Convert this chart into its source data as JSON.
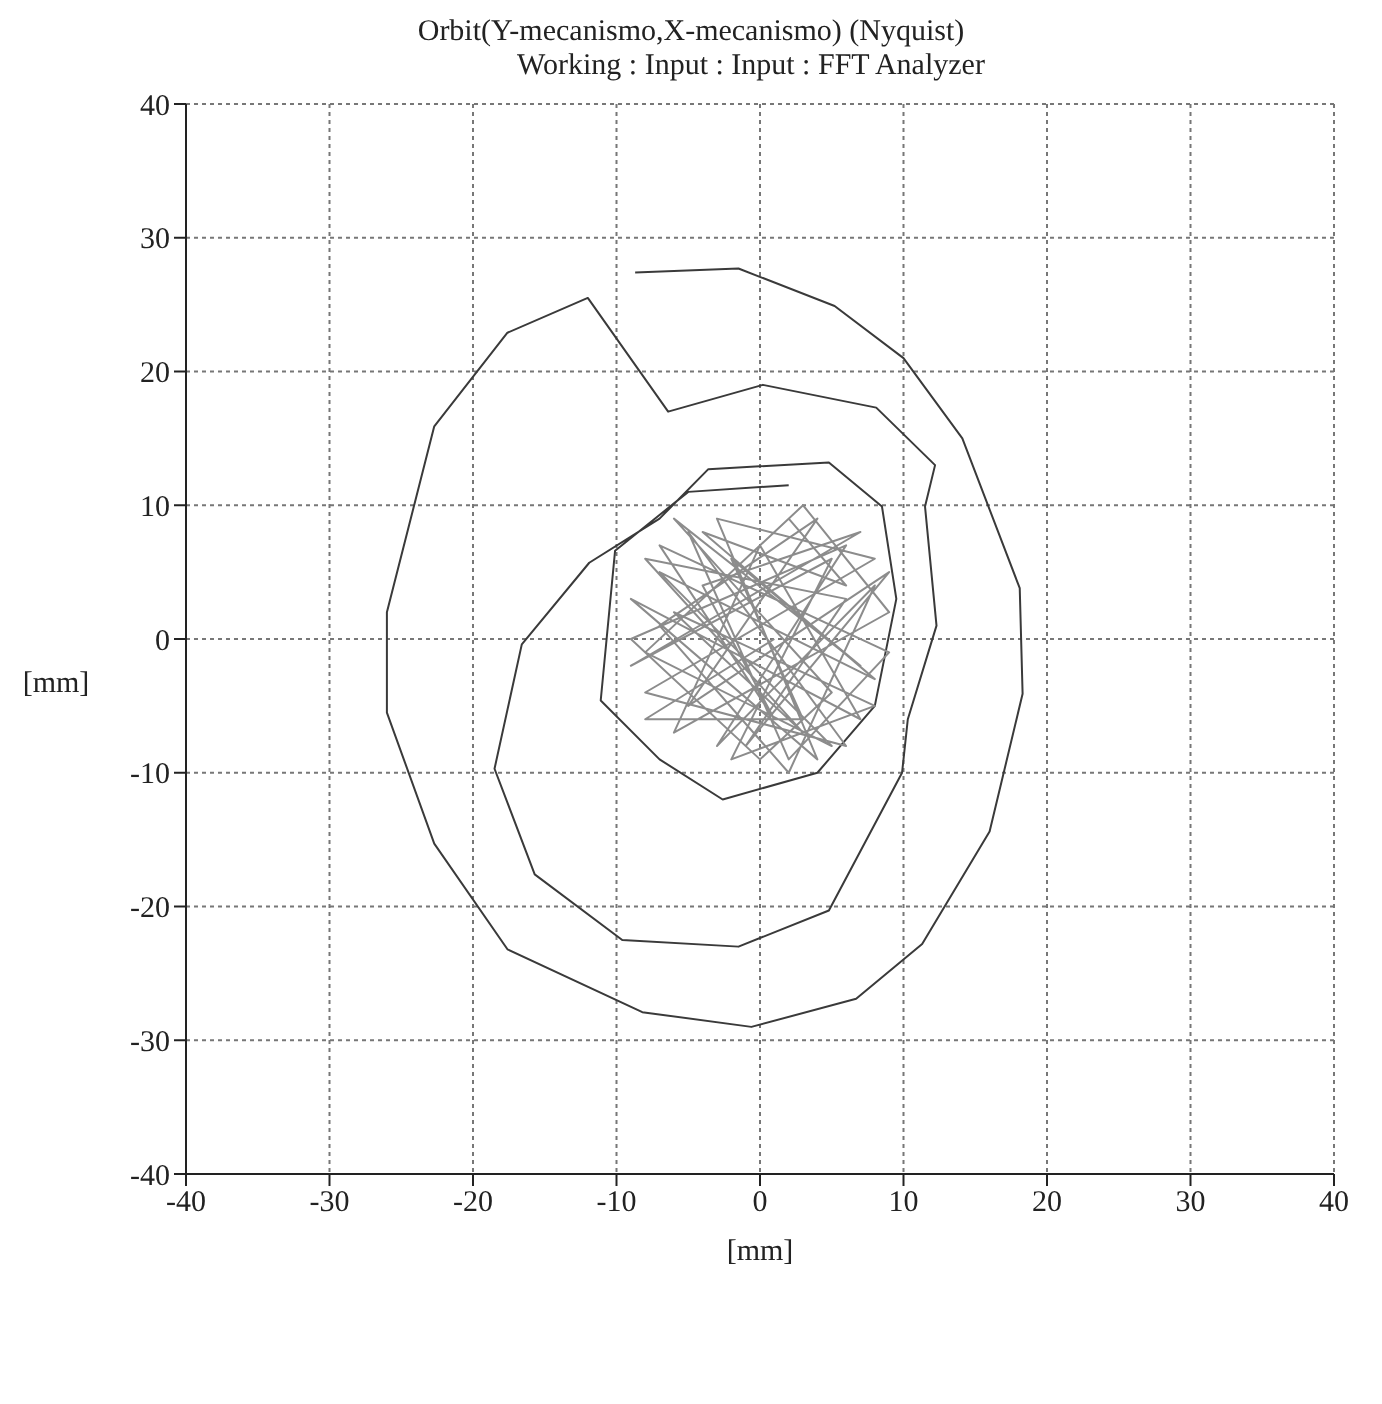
{
  "chart_data": {
    "type": "line",
    "title": "Orbit(Y-mecanismo,X-mecanismo) (Nyquist)",
    "subtitle": "Working : Input : Input : FFT Analyzer",
    "xlabel": "[mm]",
    "ylabel": "[mm]",
    "xlim": [
      -40,
      40
    ],
    "ylim": [
      -40,
      40
    ],
    "xticks": [
      -40,
      -30,
      -20,
      -10,
      0,
      10,
      20,
      30,
      40
    ],
    "yticks": [
      -40,
      -30,
      -20,
      -10,
      0,
      10,
      20,
      30,
      40
    ],
    "grid": true,
    "legend": false,
    "marker": "none",
    "line_style": "solid",
    "series": [
      {
        "color": "#3a3a3a",
        "x": [
          -8.7,
          -1.5,
          5.2,
          10,
          14.1,
          18.1,
          18.3,
          16,
          11.3,
          6.7,
          -0.6,
          -8.2,
          -17.6,
          -22.7,
          -26,
          -26,
          -22.7,
          -17.6,
          -12,
          -6.4,
          0.2,
          8.1,
          12.2,
          11.5,
          12.3,
          10.3,
          9.9,
          4.8,
          -1.5,
          -9.6,
          -15.7,
          -18.5,
          -16.6,
          -11.9,
          -7,
          -3.6,
          4.8,
          8.5,
          9.5,
          8,
          4,
          -2.6,
          -7,
          -11.1,
          -10.1,
          -5,
          2
        ],
        "values": [
          27.4,
          27.7,
          24.9,
          21,
          15,
          3.8,
          -4.1,
          -14.4,
          -22.8,
          -26.9,
          -29,
          -27.9,
          -23.2,
          -15.3,
          -5.5,
          2,
          15.9,
          22.9,
          25.5,
          17,
          19,
          17.3,
          13,
          9.9,
          1,
          -6,
          -10,
          -20.3,
          -23,
          -22.5,
          -17.6,
          -9.7,
          -0.4,
          5.7,
          9,
          12.7,
          13.2,
          9.9,
          3,
          -5,
          -10,
          -12,
          -9,
          -4.6,
          6.6,
          11,
          11.5
        ]
      },
      {
        "color": "#8c8c8c",
        "x": [
          2,
          6,
          -4,
          8,
          -7,
          5,
          -8,
          3,
          9,
          -6,
          0,
          7,
          -9,
          4,
          -3,
          8,
          -8,
          6,
          -5,
          2,
          9,
          -7,
          1,
          -4,
          7,
          -9,
          5,
          -2,
          8,
          -6,
          3,
          -8,
          6,
          -1,
          9,
          -5,
          4,
          -7,
          2,
          8,
          -3,
          6,
          -9,
          0,
          5,
          -6,
          7,
          -2,
          3,
          -8,
          1
        ],
        "values": [
          9,
          4,
          8,
          -3,
          5,
          -8,
          -1,
          10,
          2,
          -7,
          7,
          -6,
          3,
          -9,
          9,
          6,
          -4,
          -8,
          8,
          -9,
          -1,
          7,
          -6,
          4,
          8,
          -2,
          6,
          -9,
          -5,
          2,
          -7,
          6,
          3,
          -8,
          5,
          -5,
          9,
          1,
          -10,
          4,
          -8,
          7,
          0,
          -9,
          -4,
          9,
          -2,
          6,
          -6,
          -6,
          0
        ]
      }
    ]
  }
}
